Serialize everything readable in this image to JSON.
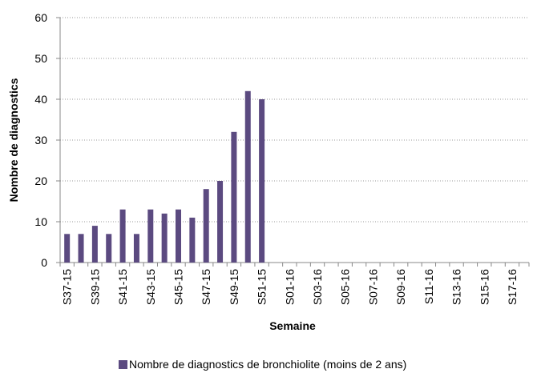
{
  "chart_data": {
    "type": "bar",
    "y_label": "Nombre de diagnostics",
    "x_label": "Semaine",
    "categories": [
      "S37-15",
      null,
      "S39-15",
      null,
      "S41-15",
      null,
      "S43-15",
      null,
      "S45-15",
      null,
      "S47-15",
      null,
      "S49-15",
      null,
      "S51-15",
      null,
      "S01-16",
      null,
      "S03-16",
      null,
      "S05-16",
      null,
      "S07-16",
      null,
      "S09-16",
      null,
      "S11-16",
      null,
      "S13-16",
      null,
      "S15-16",
      null,
      "S17-16",
      null
    ],
    "series": [
      {
        "name": "Nombre de diagnostics de bronchiolite (moins de 2 ans)",
        "color": "#5b4a80",
        "values": [
          7,
          7,
          9,
          7,
          13,
          7,
          13,
          12,
          13,
          11,
          18,
          20,
          32,
          42,
          40,
          null,
          null,
          null,
          null,
          null,
          null,
          null,
          null,
          null,
          null,
          null,
          null,
          null,
          null,
          null,
          null,
          null,
          null,
          null
        ]
      }
    ],
    "ylim": [
      0,
      60
    ],
    "yticks": [
      0,
      10,
      20,
      30,
      40,
      50,
      60
    ],
    "grid": true,
    "legend": "bottom"
  }
}
